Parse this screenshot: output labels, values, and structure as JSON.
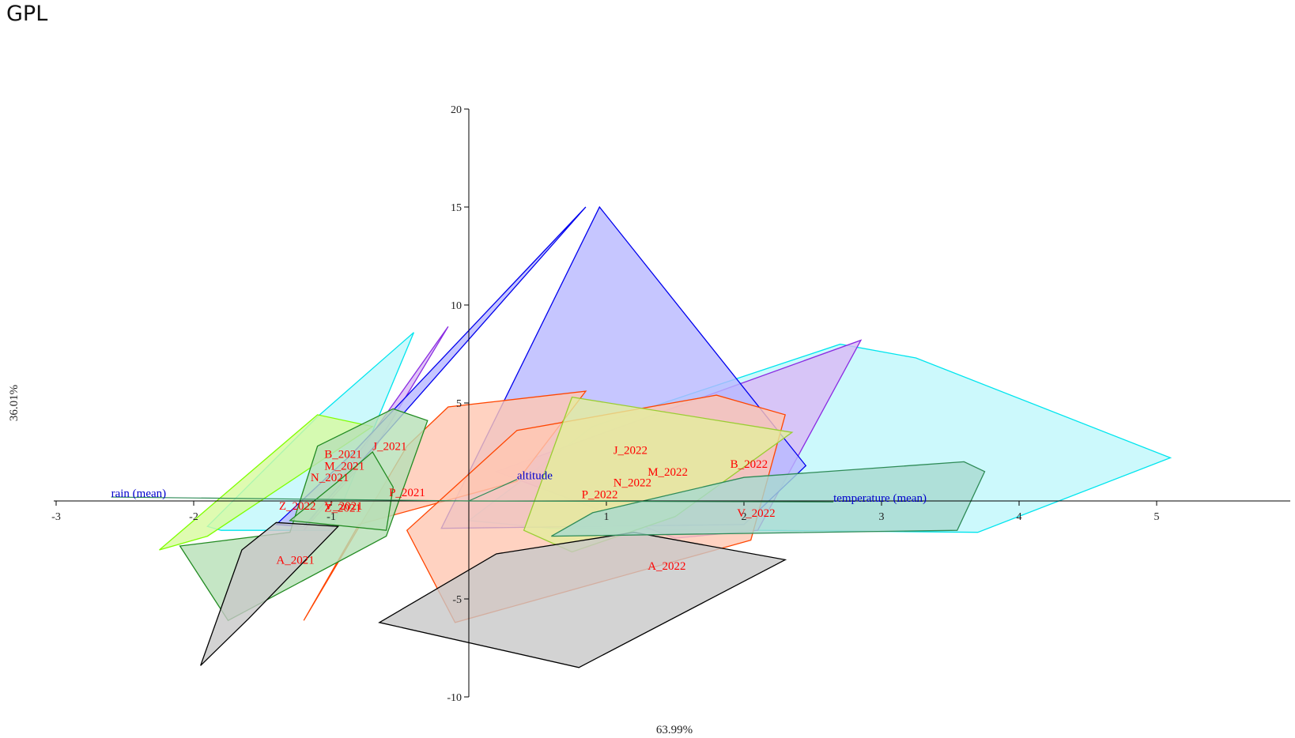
{
  "page": {
    "title": "GPL"
  },
  "chart_data": {
    "type": "scatter",
    "title": "GPL",
    "xlabel": "63.99%",
    "ylabel": "36.01%",
    "xlim": [
      -3,
      6
    ],
    "ylim": [
      -10,
      20
    ],
    "x_ticks": [
      -3,
      -2,
      -1,
      1,
      2,
      3,
      4,
      5
    ],
    "y_ticks": [
      -10,
      -5,
      5,
      10,
      15,
      20
    ],
    "grid": false,
    "legend": "none",
    "observations": [
      {
        "label": "B_2021",
        "x": -1.05,
        "y": 2.2
      },
      {
        "label": "J_2021",
        "x": -0.7,
        "y": 2.6
      },
      {
        "label": "M_2021",
        "x": -1.05,
        "y": 1.6
      },
      {
        "label": "N_2021",
        "x": -1.15,
        "y": 1.0
      },
      {
        "label": "P_2021",
        "x": -0.58,
        "y": 0.25
      },
      {
        "label": "V_2021",
        "x": -1.05,
        "y": -0.45
      },
      {
        "label": "Z_2021",
        "x": -1.05,
        "y": -0.55
      },
      {
        "label": "Z_2022",
        "x": -1.38,
        "y": -0.45
      },
      {
        "label": "A_2021",
        "x": -1.4,
        "y": -3.2
      },
      {
        "label": "J_2022",
        "x": 1.05,
        "y": 2.4
      },
      {
        "label": "M_2022",
        "x": 1.3,
        "y": 1.3
      },
      {
        "label": "N_2022",
        "x": 1.05,
        "y": 0.75
      },
      {
        "label": "P_2022",
        "x": 0.82,
        "y": 0.15
      },
      {
        "label": "B_2022",
        "x": 1.9,
        "y": 1.7
      },
      {
        "label": "V_2022",
        "x": 1.95,
        "y": -0.8
      },
      {
        "label": "A_2022",
        "x": 1.3,
        "y": -3.5
      }
    ],
    "variables": [
      {
        "label": "rain (mean)",
        "x": -2.6,
        "y": 0.2
      },
      {
        "label": "altitude",
        "x": 0.35,
        "y": 1.1
      },
      {
        "label": "temperature (mean)",
        "x": 2.65,
        "y": -0.05
      }
    ],
    "series": [
      {
        "color": "#00e5ee",
        "fill": "#bff7fb",
        "points": [
          [
            -1.9,
            -1.3
          ],
          [
            -1.8,
            -1.5
          ],
          [
            -1.0,
            -1.5
          ],
          [
            -0.4,
            8.6
          ],
          [
            -1.1,
            4.3
          ]
        ]
      },
      {
        "color": "#00e5ee",
        "fill": "#bff7fb",
        "points": [
          [
            0.0,
            -1.0
          ],
          [
            0.6,
            -1.4
          ],
          [
            3.7,
            -1.6
          ],
          [
            5.1,
            2.2
          ],
          [
            3.25,
            7.3
          ],
          [
            2.7,
            8.0
          ],
          [
            0.9,
            3.8
          ]
        ]
      },
      {
        "color": "#8a2be2",
        "fill": "#d9b8f5",
        "points": [
          [
            0.2,
            1.5
          ],
          [
            2.85,
            8.2
          ],
          [
            2.1,
            -1.5
          ],
          [
            1.5,
            -1.9
          ]
        ]
      },
      {
        "color": "#8a2be2",
        "fill": "#d9b8f5",
        "points": [
          [
            -1.2,
            -1.5
          ],
          [
            -0.7,
            2.5
          ],
          [
            -0.15,
            8.9
          ]
        ]
      },
      {
        "color": "#0000ee",
        "fill": "#b8b8ff",
        "points": [
          [
            -1.4,
            -1.2
          ],
          [
            -0.85,
            2.4
          ],
          [
            0.85,
            15.0
          ],
          [
            -1.2,
            -1.3
          ]
        ]
      },
      {
        "color": "#0000ee",
        "fill": "#b8b8ff",
        "points": [
          [
            -0.2,
            -1.4
          ],
          [
            0.95,
            15.0
          ],
          [
            2.45,
            1.8
          ],
          [
            2.0,
            -1.2
          ]
        ]
      },
      {
        "color": "#ff4500",
        "fill": "#ffc7b2",
        "points": [
          [
            -1.2,
            -6.1
          ],
          [
            -0.45,
            2.8
          ],
          [
            -0.15,
            4.8
          ],
          [
            0.85,
            5.6
          ],
          [
            0.35,
            1.0
          ],
          [
            -0.8,
            -1.2
          ]
        ]
      },
      {
        "color": "#ff4500",
        "fill": "#ffc7b2",
        "points": [
          [
            -0.45,
            -1.5
          ],
          [
            0.35,
            3.6
          ],
          [
            1.8,
            5.4
          ],
          [
            2.3,
            4.4
          ],
          [
            2.05,
            -2.0
          ],
          [
            -0.1,
            -6.2
          ]
        ]
      },
      {
        "color": "#7fff00",
        "fill": "#d7fa9e",
        "points": [
          [
            -2.25,
            -2.5
          ],
          [
            -1.9,
            -1.8
          ],
          [
            -0.7,
            3.8
          ],
          [
            -1.1,
            4.4
          ]
        ]
      },
      {
        "color": "#9acd32",
        "fill": "#e3ee9c",
        "points": [
          [
            0.4,
            -1.5
          ],
          [
            0.75,
            5.3
          ],
          [
            2.35,
            3.5
          ],
          [
            1.5,
            -0.8
          ],
          [
            0.75,
            -2.6
          ]
        ]
      },
      {
        "color": "#228b22",
        "fill": "#b7e0b7",
        "points": [
          [
            -2.1,
            -2.3
          ],
          [
            -1.75,
            -6.1
          ],
          [
            -0.6,
            -1.8
          ],
          [
            -0.3,
            4.1
          ],
          [
            -0.55,
            4.7
          ],
          [
            -1.1,
            2.8
          ],
          [
            -1.3,
            -1.6
          ]
        ]
      },
      {
        "color": "#228b22",
        "fill": "#b7e0b7",
        "points": [
          [
            -1.3,
            -1.0
          ],
          [
            -0.95,
            1.0
          ],
          [
            -0.7,
            2.5
          ],
          [
            -0.55,
            0.7
          ],
          [
            -0.6,
            -1.5
          ]
        ]
      },
      {
        "color": "#000000",
        "fill": "#c8c8c8",
        "points": [
          [
            -1.95,
            -8.4
          ],
          [
            -1.6,
            -6.0
          ],
          [
            -0.95,
            -1.3
          ],
          [
            -1.4,
            -1.1
          ],
          [
            -1.65,
            -2.5
          ]
        ]
      },
      {
        "color": "#000000",
        "fill": "#c8c8c8",
        "points": [
          [
            -0.65,
            -6.2
          ],
          [
            0.2,
            -2.7
          ],
          [
            1.2,
            -1.6
          ],
          [
            2.3,
            -3.0
          ],
          [
            0.8,
            -8.5
          ]
        ]
      },
      {
        "color": "#2e8b57",
        "fill": "#a7d9cf",
        "points": [
          [
            0.6,
            -1.8
          ],
          [
            3.55,
            -1.5
          ],
          [
            3.75,
            1.5
          ],
          [
            3.6,
            2.0
          ],
          [
            2.0,
            1.2
          ],
          [
            0.9,
            -0.6
          ]
        ]
      }
    ]
  }
}
